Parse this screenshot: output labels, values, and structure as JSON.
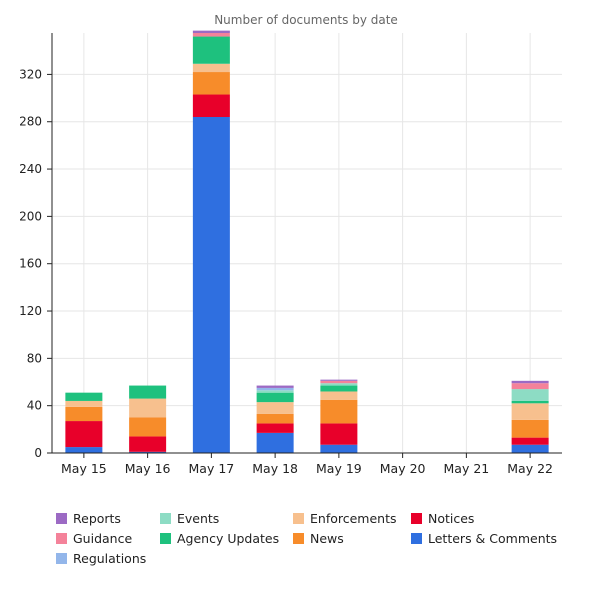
{
  "chart_data": {
    "type": "bar",
    "stacked": true,
    "title": "Number of documents by date",
    "categories": [
      "May 15",
      "May 16",
      "May 17",
      "May 18",
      "May 19",
      "May 20",
      "May 21",
      "May 22"
    ],
    "ylim": [
      0,
      355
    ],
    "yticks": [
      0,
      40,
      80,
      120,
      160,
      200,
      240,
      280,
      320
    ],
    "grid": true,
    "legend_position": "bottom",
    "series": [
      {
        "name": "Letters & Comments",
        "color": "#2f6fe0",
        "values": [
          5,
          1,
          284,
          17,
          7,
          0,
          0,
          7
        ]
      },
      {
        "name": "Notices",
        "color": "#e8002a",
        "values": [
          22,
          13,
          19,
          8,
          18,
          0,
          0,
          6
        ]
      },
      {
        "name": "News",
        "color": "#f78c2a",
        "values": [
          12,
          16,
          19,
          8,
          20,
          0,
          0,
          15
        ]
      },
      {
        "name": "Enforcements",
        "color": "#f7c08e",
        "values": [
          5,
          16,
          7,
          10,
          7,
          0,
          0,
          14
        ]
      },
      {
        "name": "Agency Updates",
        "color": "#1ec17e",
        "values": [
          7,
          11,
          23,
          8,
          5,
          0,
          0,
          2
        ]
      },
      {
        "name": "Events",
        "color": "#8ddcc4",
        "values": [
          0,
          0,
          0,
          2,
          2,
          0,
          0,
          10
        ]
      },
      {
        "name": "Regulations",
        "color": "#93b6ea",
        "values": [
          0,
          0,
          0,
          2,
          0,
          0,
          0,
          0
        ]
      },
      {
        "name": "Guidance",
        "color": "#f4829a",
        "values": [
          0,
          0,
          3,
          0,
          2,
          0,
          0,
          5
        ]
      },
      {
        "name": "Reports",
        "color": "#9c6ac4",
        "values": [
          0,
          0,
          2,
          2,
          1,
          0,
          0,
          2
        ]
      }
    ],
    "legend_order": [
      "Reports",
      "Events",
      "Enforcements",
      "Notices",
      "Guidance",
      "Agency Updates",
      "News",
      "Letters & Comments",
      "Regulations"
    ]
  }
}
